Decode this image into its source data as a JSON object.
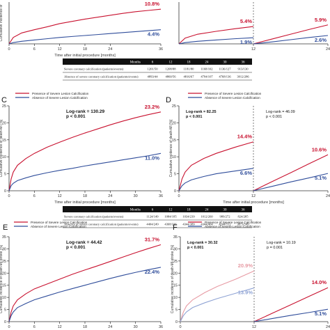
{
  "colors": {
    "red": "#c8102e",
    "blue": "#2e4c9a",
    "light_red": "#e79aa3",
    "light_blue": "#8fa3d4",
    "axis": "#333333",
    "table_head": "#111111"
  },
  "legend": {
    "severe": "Presence of Severe Lesion Calcification",
    "absence": "Absence of Severe Lesion Calcification"
  },
  "xlabel": "Time after initial procedure [months]",
  "tables": [
    {
      "headers": [
        "Months",
        "6",
        "12",
        "18",
        "24",
        "30",
        "36"
      ],
      "rows": [
        {
          "label": "Severe coronary calcification (patients/events)",
          "values": [
            "1201/50",
            "1208/88",
            "1181/80",
            "1168/102",
            "1136/127",
            "913/130"
          ]
        },
        {
          "label": "Absence of severe coronary calcification (patients/events)",
          "values": [
            "4893/44",
            "4860/56",
            "4816/67",
            "4794/107",
            "4768/136",
            "3912/286"
          ]
        }
      ]
    },
    {
      "headers": [
        "Months",
        "6",
        "12",
        "18",
        "24",
        "30",
        "36"
      ],
      "rows": [
        {
          "label": "Severe coronary calcification (patients/events)",
          "values": [
            "1124/149",
            "1084/185",
            "1034/239",
            "1012/260",
            "989/272",
            "824/285"
          ]
        },
        {
          "label": "Absence of severe coronary calcification (patients/events)",
          "values": [
            "4404/249",
            "4368/326",
            "4344/389",
            "4344/464",
            "4244/512",
            "3873/549"
          ]
        }
      ]
    }
  ],
  "chart_data": [
    {
      "panel": "",
      "type": "line",
      "ylabel": "Cumulative incidence of",
      "xlabel": "Time after initial procedure [months]",
      "xlim": [
        0,
        36
      ],
      "ylim": [
        0,
        13
      ],
      "xticks": [
        0,
        6,
        12,
        18,
        24,
        36
      ],
      "yticks": [],
      "series": [
        {
          "color": "red",
          "end_label": "10.8%",
          "x": [
            0,
            1,
            3,
            6,
            9,
            12,
            15,
            18,
            21,
            24,
            27,
            30,
            33,
            36
          ],
          "y": [
            0,
            2.0,
            3.4,
            4.4,
            5.3,
            6.3,
            7.0,
            7.7,
            8.3,
            8.9,
            9.5,
            10.0,
            10.4,
            10.8
          ]
        },
        {
          "color": "blue",
          "end_label": "4.4%",
          "x": [
            0,
            1,
            3,
            6,
            9,
            12,
            15,
            18,
            21,
            24,
            27,
            30,
            33,
            36
          ],
          "y": [
            0,
            0.4,
            0.8,
            1.2,
            1.6,
            2.0,
            2.3,
            2.6,
            2.9,
            3.2,
            3.5,
            3.8,
            4.1,
            4.4
          ]
        }
      ]
    },
    {
      "panel": "",
      "type": "line",
      "ylabel": "",
      "xlabel": "",
      "xlim": [
        0,
        24
      ],
      "ylim": [
        0,
        13
      ],
      "xticks": [
        12,
        24
      ],
      "yticks": [],
      "series": [
        {
          "color": "red",
          "end_label": "5.4%",
          "x": [
            0,
            1,
            3,
            6,
            9,
            12
          ],
          "y": [
            0,
            1.8,
            3.0,
            3.9,
            4.7,
            5.4
          ]
        },
        {
          "color": "blue",
          "end_label": "1.9%",
          "x": [
            0,
            1,
            3,
            6,
            9,
            12
          ],
          "y": [
            0,
            0.4,
            0.8,
            1.2,
            1.6,
            1.9
          ]
        },
        {
          "color": "red",
          "end_label": "5.9%",
          "x": [
            12,
            15,
            18,
            21,
            24
          ],
          "y": [
            0,
            1.5,
            3.0,
            4.5,
            5.9
          ]
        },
        {
          "color": "blue",
          "end_label": "2.6%",
          "x": [
            12,
            15,
            18,
            21,
            24
          ],
          "y": [
            0,
            0.6,
            1.3,
            2.0,
            2.6
          ]
        }
      ]
    },
    {
      "panel": "C",
      "type": "line",
      "ylabel": "Cumulative incidence of death-MI [%]",
      "xlabel": "Time after initial procedure [months]",
      "xlim": [
        0,
        36
      ],
      "ylim": [
        0,
        25
      ],
      "xticks": [
        0,
        6,
        12,
        18,
        24,
        30,
        36
      ],
      "yticks": [
        0,
        5,
        10,
        15,
        20,
        25
      ],
      "annotation": [
        "Log-rank = 130.29",
        "p < 0.001"
      ],
      "series": [
        {
          "color": "red",
          "end_label": "23.2%",
          "x": [
            0,
            0.5,
            1,
            2,
            4,
            6,
            9,
            12,
            15,
            18,
            21,
            24,
            27,
            30,
            33,
            36
          ],
          "y": [
            0,
            3.5,
            5.5,
            7.5,
            9.5,
            11.0,
            12.8,
            14.3,
            15.7,
            17.0,
            18.2,
            19.4,
            20.5,
            21.5,
            22.4,
            23.2
          ]
        },
        {
          "color": "blue",
          "end_label": "11.0%",
          "x": [
            0,
            0.5,
            1,
            2,
            4,
            6,
            9,
            12,
            15,
            18,
            21,
            24,
            27,
            30,
            33,
            36
          ],
          "y": [
            0,
            1.5,
            2.2,
            3.0,
            3.8,
            4.5,
            5.3,
            6.0,
            6.6,
            7.3,
            7.9,
            8.5,
            9.1,
            9.7,
            10.3,
            11.0
          ]
        }
      ]
    },
    {
      "panel": "D",
      "type": "line",
      "ylabel": "Cumulative incidence of death-MI [%]",
      "xlabel": "Time after initial procedure [months]",
      "xlim": [
        0,
        24
      ],
      "ylim": [
        0,
        25
      ],
      "xticks": [
        0,
        12,
        24
      ],
      "yticks": [
        0,
        5,
        10,
        15,
        20,
        25
      ],
      "annotation": [
        "Log-rank = 82.25",
        "p < 0.001"
      ],
      "annotation2": [
        "Log-rank = 46.09",
        "p < 0.001"
      ],
      "series": [
        {
          "color": "red",
          "end_label": "14.4%",
          "x": [
            0,
            0.5,
            1,
            2,
            4,
            6,
            9,
            12
          ],
          "y": [
            0,
            3.5,
            5.5,
            7.5,
            9.5,
            11.0,
            12.8,
            14.4
          ]
        },
        {
          "color": "blue",
          "end_label": "6.6%",
          "x": [
            0,
            0.5,
            1,
            2,
            4,
            6,
            9,
            12
          ],
          "y": [
            0,
            1.5,
            2.3,
            3.2,
            4.2,
            5.0,
            5.8,
            6.6
          ]
        },
        {
          "color": "red",
          "end_label": "10.6%",
          "x": [
            12,
            15,
            18,
            21,
            24
          ],
          "y": [
            0,
            2.7,
            5.3,
            8.0,
            10.6
          ]
        },
        {
          "color": "blue",
          "end_label": "5.1%",
          "x": [
            12,
            15,
            18,
            21,
            24
          ],
          "y": [
            0,
            1.3,
            2.6,
            3.8,
            5.1
          ]
        }
      ]
    },
    {
      "panel": "E",
      "type": "line",
      "ylabel": "Cumulative incidence of death-MI-stroke [%]",
      "xlabel": "",
      "xlim": [
        0,
        36
      ],
      "ylim": [
        0,
        35
      ],
      "xticks": [
        0,
        6,
        12,
        18,
        24,
        30,
        36
      ],
      "yticks": [
        0,
        5,
        10,
        15,
        20,
        25,
        30,
        35
      ],
      "annotation": [
        "Log-rank = 44.42",
        "p < 0.001"
      ],
      "series": [
        {
          "color": "red",
          "end_label": "31.7%",
          "x": [
            0,
            0.5,
            1,
            2,
            4,
            6,
            9,
            12,
            15,
            18,
            21,
            24,
            27,
            30,
            33,
            36
          ],
          "y": [
            0,
            4.0,
            6.5,
            9.0,
            11.5,
            13.5,
            15.5,
            17.5,
            19.5,
            21.3,
            23.0,
            24.8,
            26.6,
            28.4,
            30.1,
            31.7
          ]
        },
        {
          "color": "blue",
          "end_label": "22.4%",
          "x": [
            0,
            0.5,
            1,
            2,
            4,
            6,
            9,
            12,
            15,
            18,
            21,
            24,
            27,
            30,
            33,
            36
          ],
          "y": [
            0,
            2.5,
            4.0,
            5.8,
            7.5,
            9.0,
            10.6,
            12.2,
            13.6,
            15.0,
            16.4,
            17.8,
            19.1,
            20.3,
            21.4,
            22.4
          ]
        }
      ]
    },
    {
      "panel": "F",
      "type": "line",
      "ylabel": "Cumulative incidence of death-MI-stroke [%]",
      "xlabel": "",
      "xlim": [
        0,
        24
      ],
      "ylim": [
        0,
        35
      ],
      "xticks": [
        0,
        12,
        24
      ],
      "yticks": [
        0,
        5,
        10,
        15,
        20,
        25,
        30,
        35
      ],
      "annotation": [
        "Log-rank = 30.32",
        "p < 0.001"
      ],
      "annotation2": [
        "Log-rank = 10.19",
        "p = 0.001"
      ],
      "series": [
        {
          "color": "light_red",
          "end_label": "20.9%",
          "x": [
            0,
            0.5,
            1,
            2,
            4,
            6,
            9,
            12
          ],
          "y": [
            0,
            4.0,
            6.5,
            9.0,
            12.0,
            14.5,
            17.5,
            20.9
          ]
        },
        {
          "color": "light_blue",
          "end_label": "13.9%",
          "x": [
            0,
            0.5,
            1,
            2,
            4,
            6,
            9,
            12
          ],
          "y": [
            0,
            2.5,
            4.0,
            5.8,
            7.8,
            9.5,
            11.7,
            13.9
          ]
        },
        {
          "color": "red",
          "end_label": "14.0%",
          "x": [
            12,
            15,
            18,
            21,
            24
          ],
          "y": [
            0,
            3.5,
            7.0,
            10.5,
            14.0
          ]
        },
        {
          "color": "blue",
          "end_label": "5.1%",
          "x": [
            12,
            15,
            18,
            21,
            24
          ],
          "y": [
            0,
            1.3,
            2.6,
            3.8,
            5.1
          ]
        }
      ]
    }
  ]
}
